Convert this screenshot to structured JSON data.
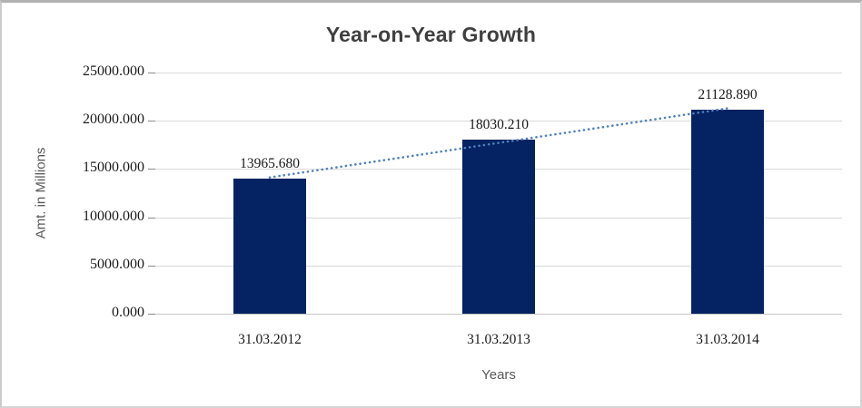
{
  "chart_data": {
    "type": "bar",
    "title": "Year-on-Year Growth",
    "categories": [
      "31.03.2012",
      "31.03.2013",
      "31.03.2014"
    ],
    "values": [
      13965.68,
      18030.21,
      21128.89
    ],
    "data_labels": [
      "13965.680",
      "18030.210",
      "21128.890"
    ],
    "xlabel": "Years",
    "ylabel": "Amt. in Millions",
    "ylim": [
      0,
      25000
    ],
    "ytick_step": 5000,
    "ytick_labels": [
      "0.000",
      "5000.000",
      "10000.000",
      "15000.000",
      "20000.000",
      "25000.000"
    ],
    "grid": true,
    "legend": "none",
    "trendline": {
      "type": "linear",
      "style": "dotted"
    },
    "colors": {
      "bar": "#052262",
      "trendline": "#4f81bd",
      "gridline": "#d9d9d9",
      "axis_line": "#c6c6c6",
      "title_text": "#3f3f3f",
      "tick_text": "#1a1a1a",
      "axis_title_text": "#595959"
    }
  }
}
